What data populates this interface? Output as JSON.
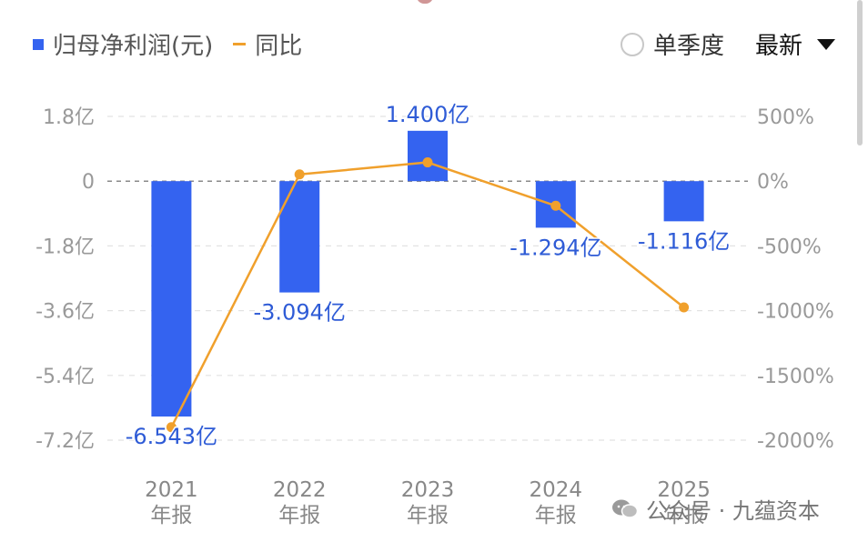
{
  "legend": {
    "bar_label": "归母净利润(元)",
    "line_label": "同比"
  },
  "controls": {
    "radio_label": "单季度",
    "select_value": "最新"
  },
  "watermark": {
    "text": "公众号 · 九蕴资本",
    "icon": "wechat-icon"
  },
  "colors": {
    "bar": "#3463f0",
    "line": "#f0a02c",
    "bar_label": "#2e5bd6",
    "axis_text": "#999999"
  },
  "chart_data": {
    "type": "bar",
    "categories": [
      "2021\n年报",
      "2022\n年报",
      "2023\n年报",
      "2024\n年报",
      "2025\n年报"
    ],
    "series": [
      {
        "name": "归母净利润(元)",
        "type": "bar",
        "axis": "left",
        "values": [
          -6.543,
          -3.094,
          1.4,
          -1.294,
          -1.116
        ],
        "labels": [
          "-6.543亿",
          "-3.094亿",
          "1.400亿",
          "-1.294亿",
          "-1.116亿"
        ]
      },
      {
        "name": "同比",
        "type": "line",
        "axis": "right",
        "values": [
          -1900,
          52,
          145,
          -190,
          -975
        ]
      }
    ],
    "y_left": {
      "ticks": [
        1.8,
        0,
        -1.8,
        -3.6,
        -5.4,
        -7.2
      ],
      "tick_labels": [
        "1.8亿",
        "0",
        "-1.8亿",
        "-3.6亿",
        "-5.4亿",
        "-7.2亿"
      ],
      "range": [
        -7.2,
        1.8
      ]
    },
    "y_right": {
      "ticks": [
        500,
        0,
        -500,
        -1000,
        -1500,
        -2000
      ],
      "tick_labels": [
        "500%",
        "0%",
        "-500%",
        "-1000%",
        "-1500%",
        "-2000%"
      ],
      "range": [
        -2000,
        500
      ]
    },
    "grid": true,
    "legend_position": "top-left"
  }
}
